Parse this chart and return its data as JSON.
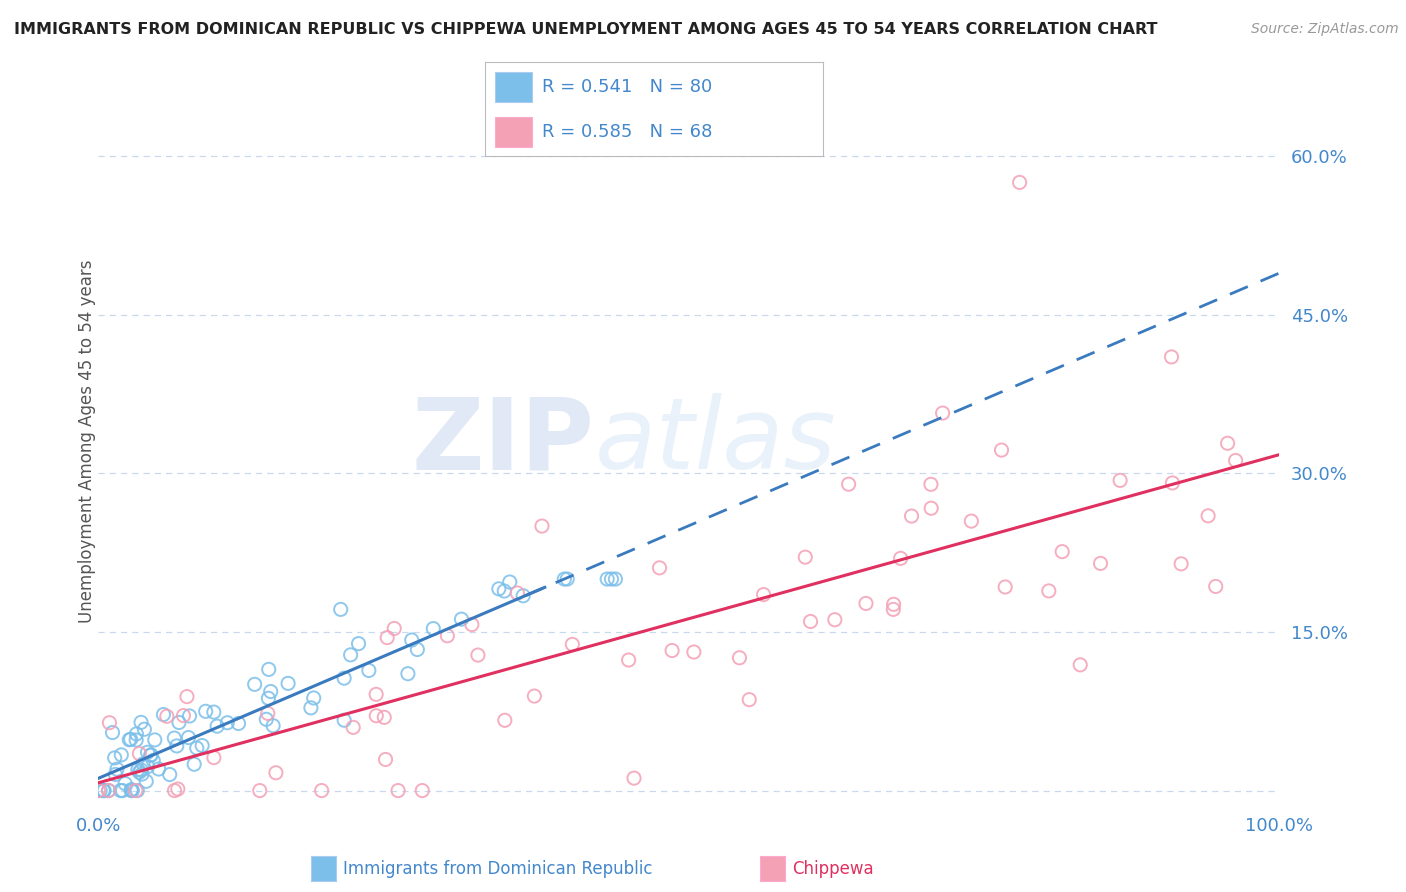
{
  "title": "IMMIGRANTS FROM DOMINICAN REPUBLIC VS CHIPPEWA UNEMPLOYMENT AMONG AGES 45 TO 54 YEARS CORRELATION CHART",
  "source": "Source: ZipAtlas.com",
  "ylabel": "Unemployment Among Ages 45 to 54 years",
  "xlim": [
    0.0,
    1.0
  ],
  "ylim": [
    -0.02,
    0.68
  ],
  "yticks": [
    0.0,
    0.15,
    0.3,
    0.45,
    0.6
  ],
  "ytick_labels": [
    "",
    "15.0%",
    "30.0%",
    "45.0%",
    "60.0%"
  ],
  "xticks": [
    0.0,
    0.25,
    0.5,
    0.75,
    1.0
  ],
  "xtick_labels": [
    "0.0%",
    "",
    "",
    "",
    "100.0%"
  ],
  "blue_R": 0.541,
  "blue_N": 80,
  "pink_R": 0.585,
  "pink_N": 68,
  "blue_color": "#7bbfea",
  "pink_color": "#f4a0b5",
  "blue_line_color": "#3a7abf",
  "pink_line_color": "#e03060",
  "legend_label_blue": "Immigrants from Dominican Republic",
  "legend_label_pink": "Chippewa",
  "watermark_left": "ZIP",
  "watermark_right": "atlas",
  "background_color": "#ffffff",
  "grid_color": "#c8d8ee",
  "title_color": "#222222",
  "axis_label_color": "#555555",
  "tick_color": "#4488cc"
}
